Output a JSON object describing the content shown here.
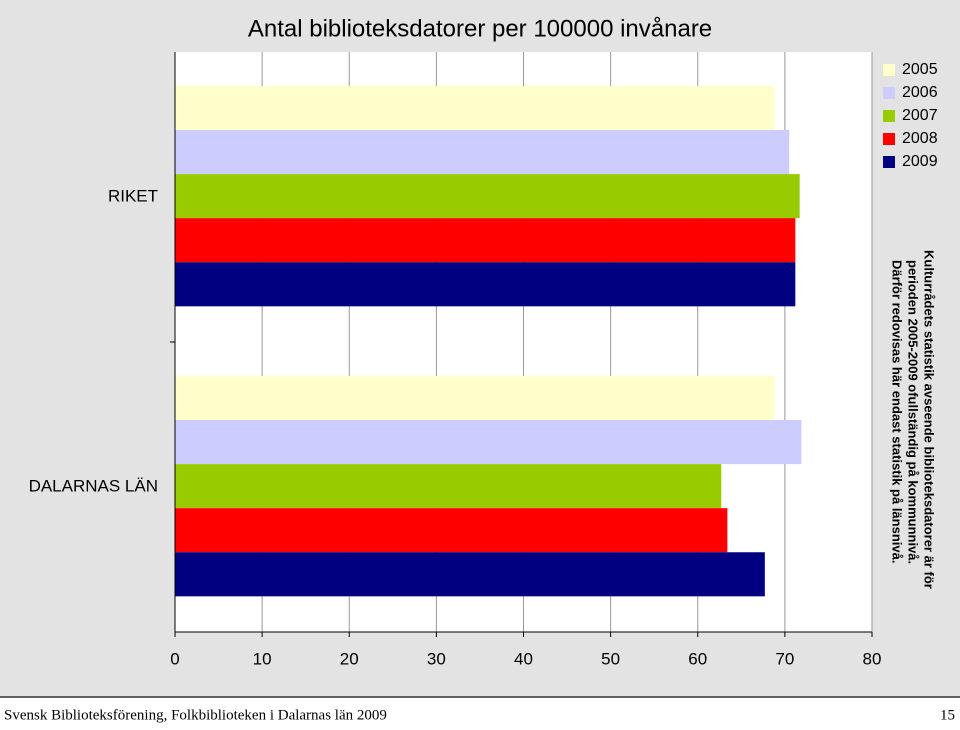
{
  "chart_data": {
    "type": "bar",
    "orientation": "horizontal",
    "title": "Antal biblioteksdatorer per 100000 invånare",
    "categories": [
      "RIKET",
      "DALARNAS LÄN"
    ],
    "series": [
      {
        "name": "2005",
        "color": "#ffffcc",
        "values": [
          68.8,
          68.8
        ]
      },
      {
        "name": "2006",
        "color": "#ccccff",
        "values": [
          70.5,
          71.9
        ]
      },
      {
        "name": "2007",
        "color": "#99cc00",
        "values": [
          71.7,
          62.7
        ]
      },
      {
        "name": "2008",
        "color": "#ff0000",
        "values": [
          71.2,
          63.4
        ]
      },
      {
        "name": "2009",
        "color": "#000080",
        "values": [
          71.2,
          67.7
        ]
      }
    ],
    "xlim": [
      0,
      80
    ],
    "xticks": [
      0,
      10,
      20,
      30,
      40,
      50,
      60,
      70,
      80
    ],
    "grid": true,
    "legend": "top-right",
    "annotation": [
      "Kulturrådets statistik avseende biblioteksdatorer är för",
      "perioden 2005-2009 ofullständig på kommunnivå.",
      "Därför redovisas här endast statistik på länsnivå."
    ]
  },
  "footer": {
    "text": "Svensk Biblioteksförening, Folkbiblioteken i Dalarnas län 2009",
    "page": "15"
  }
}
